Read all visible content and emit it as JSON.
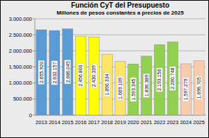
{
  "chart_data": {
    "type": "bar",
    "title": "Función CyT del Presupuesto",
    "subtitle": "Millones de pesos constantes a precios de 2025",
    "categories": [
      "2013",
      "2014",
      "2015",
      "2016",
      "2017",
      "2018",
      "2019",
      "2020",
      "2021",
      "2022",
      "2023",
      "2024",
      "2025"
    ],
    "values": [
      2655920,
      2632157,
      2686045,
      2456800,
      2430339,
      1896334,
      1669109,
      1593345,
      1836389,
      2193156,
      2280748,
      1597279,
      1696705
    ],
    "value_labels": [
      "2.655.920",
      "2.632.157",
      "2.686.045",
      "2.456.800",
      "2.430.339",
      "1.896.334",
      "1.669.109",
      "1.593.345",
      "1.836.389",
      "2.193.156",
      "2.280.748",
      "1.597.279",
      "1.696.705"
    ],
    "colors": [
      "#5b9bd5",
      "#5b9bd5",
      "#5b9bd5",
      "#ffff00",
      "#ffff00",
      "#ffe566",
      "#ffe566",
      "#92d050",
      "#92d050",
      "#92d050",
      "#92d050",
      "#f8cbad",
      "#f8cbad"
    ],
    "ylim": [
      0,
      3000000
    ],
    "yticks": [
      0,
      {
        "value": 500000,
        "label": "500.000"
      },
      {
        "value": 1000000,
        "label": "1.000.000"
      },
      {
        "value": 1500000,
        "label": "1.500.000"
      },
      {
        "value": 2000000,
        "label": "2.000.000"
      },
      {
        "value": 2500000,
        "label": "2.500.000"
      },
      {
        "value": 3000000,
        "label": "3.000.000"
      }
    ],
    "grid": true,
    "data_labels": true
  }
}
